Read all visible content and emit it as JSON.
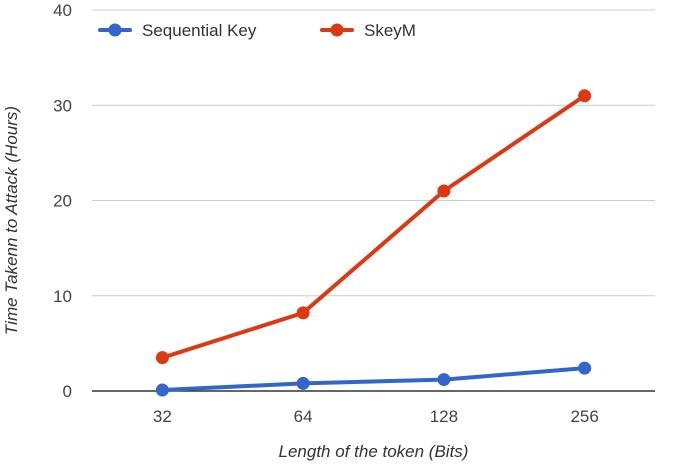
{
  "chart_data": {
    "type": "line",
    "title": "",
    "xlabel": "Length of the token (Bits)",
    "ylabel": "Time Takenn to Attack (Hours)",
    "categories": [
      "32",
      "64",
      "128",
      "256"
    ],
    "ylim": [
      0,
      40
    ],
    "yticks": [
      "0",
      "10",
      "20",
      "30",
      "40"
    ],
    "grid": true,
    "legend_position": "top-left",
    "series": [
      {
        "name": "Sequential Key",
        "color": "#3366cc",
        "values": [
          0.1,
          0.8,
          1.2,
          2.4
        ]
      },
      {
        "name": "SkeyM",
        "color": "#dc3912",
        "values": [
          3.5,
          8.2,
          21,
          31
        ]
      }
    ]
  }
}
